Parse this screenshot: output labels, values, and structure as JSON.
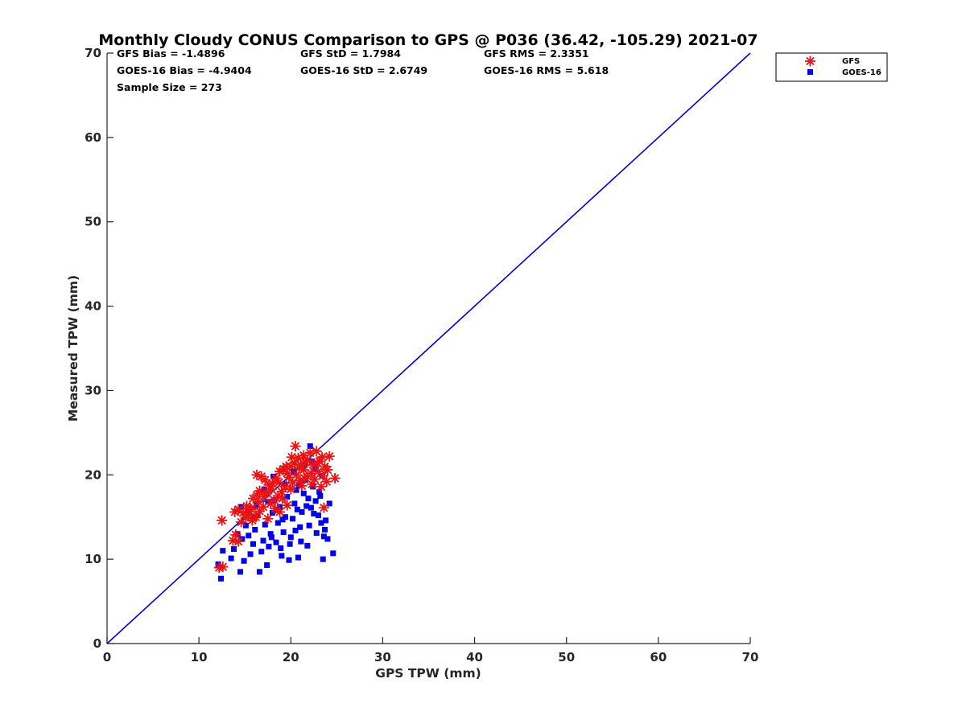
{
  "chart_data": {
    "type": "scatter",
    "title": "Monthly Cloudy CONUS Comparison to GPS @ P036 (36.42, -105.29) 2021-07",
    "xlabel": "GPS TPW (mm)",
    "ylabel": "Measured TPW (mm)",
    "xlim": [
      0,
      70
    ],
    "ylim": [
      0,
      70
    ],
    "xticks": [
      "0",
      "10",
      "20",
      "30",
      "40",
      "50",
      "60",
      "70"
    ],
    "yticks": [
      "0",
      "10",
      "20",
      "30",
      "40",
      "50",
      "60",
      "70"
    ],
    "grid": false,
    "legend_position": "top-right",
    "stats": {
      "gfs_bias": "GFS Bias = -1.4896",
      "gfs_std": "GFS StD = 1.7984",
      "gfs_rms": "GFS RMS = 2.3351",
      "goes_bias": "GOES-16 Bias = -4.9404",
      "goes_std": "GOES-16 StD = 2.6749",
      "goes_rms": "GOES-16 RMS = 5.618",
      "sample_size": "Sample Size = 273"
    },
    "reference_line": {
      "x": [
        0,
        70
      ],
      "y": [
        0,
        70
      ],
      "color": "#0000dd"
    },
    "series": [
      {
        "name": "GFS",
        "marker": "asterisk",
        "color": "#ee1111",
        "points": [
          [
            12.2,
            9.0
          ],
          [
            12.6,
            9.1
          ],
          [
            12.5,
            14.6
          ],
          [
            13.7,
            12.2
          ],
          [
            14.0,
            12.9
          ],
          [
            14.3,
            12.1
          ],
          [
            13.9,
            15.6
          ],
          [
            14.3,
            15.9
          ],
          [
            14.8,
            15.5
          ],
          [
            15.2,
            16.3
          ],
          [
            15.6,
            16.0
          ],
          [
            15.9,
            17.2
          ],
          [
            16.3,
            17.6
          ],
          [
            16.6,
            18.1
          ],
          [
            16.3,
            20.0
          ],
          [
            16.8,
            19.8
          ],
          [
            17.2,
            19.4
          ],
          [
            17.6,
            18.8
          ],
          [
            18.0,
            19.0
          ],
          [
            18.4,
            19.6
          ],
          [
            18.8,
            20.4
          ],
          [
            19.2,
            20.7
          ],
          [
            19.6,
            20.2
          ],
          [
            20.0,
            21.0
          ],
          [
            20.4,
            21.4
          ],
          [
            20.5,
            23.4
          ],
          [
            20.8,
            22.0
          ],
          [
            21.1,
            21.2
          ],
          [
            21.4,
            22.3
          ],
          [
            21.8,
            21.7
          ],
          [
            22.1,
            22.6
          ],
          [
            22.4,
            21.2
          ],
          [
            22.8,
            22.8
          ],
          [
            23.1,
            21.6
          ],
          [
            23.4,
            22.1
          ],
          [
            23.7,
            21.0
          ],
          [
            24.2,
            22.2
          ],
          [
            24.0,
            20.6
          ],
          [
            23.5,
            19.9
          ],
          [
            23.0,
            20.4
          ],
          [
            22.6,
            19.5
          ],
          [
            22.2,
            20.2
          ],
          [
            21.8,
            19.8
          ],
          [
            21.4,
            20.6
          ],
          [
            21.0,
            19.3
          ],
          [
            20.6,
            20.0
          ],
          [
            20.2,
            19.1
          ],
          [
            19.8,
            19.7
          ],
          [
            19.4,
            18.6
          ],
          [
            19.0,
            18.0
          ],
          [
            18.6,
            17.5
          ],
          [
            18.2,
            17.0
          ],
          [
            17.8,
            16.6
          ],
          [
            17.4,
            17.9
          ],
          [
            17.0,
            16.2
          ],
          [
            16.6,
            15.7
          ],
          [
            16.2,
            15.0
          ],
          [
            15.8,
            14.6
          ],
          [
            15.4,
            15.3
          ],
          [
            17.5,
            14.8
          ],
          [
            18.3,
            16.0
          ],
          [
            19.1,
            17.2
          ],
          [
            20.0,
            18.3
          ],
          [
            21.2,
            18.7
          ],
          [
            22.3,
            18.9
          ],
          [
            23.3,
            18.6
          ],
          [
            23.6,
            16.1
          ],
          [
            24.8,
            19.6
          ],
          [
            23.9,
            19.2
          ],
          [
            22.9,
            21.4
          ],
          [
            21.6,
            21.5
          ],
          [
            20.9,
            20.8
          ],
          [
            20.1,
            22.1
          ],
          [
            19.5,
            21.0
          ],
          [
            18.7,
            19.1
          ],
          [
            17.9,
            18.3
          ],
          [
            17.1,
            17.4
          ],
          [
            16.5,
            16.8
          ],
          [
            15.7,
            15.9
          ],
          [
            15.1,
            14.9
          ],
          [
            14.6,
            14.4
          ],
          [
            18.8,
            15.6
          ],
          [
            19.6,
            16.4
          ],
          [
            21.5,
            19.6
          ]
        ]
      },
      {
        "name": "GOES-16",
        "marker": "square",
        "color": "#0000ee",
        "points": [
          [
            12.1,
            9.4
          ],
          [
            12.4,
            7.7
          ],
          [
            12.6,
            11.0
          ],
          [
            13.5,
            10.1
          ],
          [
            13.8,
            11.2
          ],
          [
            14.2,
            13.0
          ],
          [
            14.5,
            8.5
          ],
          [
            14.9,
            9.8
          ],
          [
            14.7,
            12.4
          ],
          [
            15.1,
            14.0
          ],
          [
            15.4,
            12.8
          ],
          [
            15.6,
            10.6
          ],
          [
            15.9,
            11.8
          ],
          [
            16.1,
            13.5
          ],
          [
            16.4,
            15.2
          ],
          [
            16.6,
            8.5
          ],
          [
            16.8,
            10.9
          ],
          [
            17.0,
            12.2
          ],
          [
            17.2,
            14.1
          ],
          [
            17.4,
            9.3
          ],
          [
            17.6,
            11.5
          ],
          [
            17.8,
            13.0
          ],
          [
            18.0,
            15.5
          ],
          [
            18.2,
            17.0
          ],
          [
            18.4,
            12.0
          ],
          [
            18.6,
            14.3
          ],
          [
            18.8,
            16.2
          ],
          [
            19.0,
            10.4
          ],
          [
            19.2,
            13.2
          ],
          [
            19.4,
            15.0
          ],
          [
            19.6,
            17.4
          ],
          [
            19.8,
            9.9
          ],
          [
            20.0,
            12.6
          ],
          [
            20.2,
            14.8
          ],
          [
            20.4,
            16.6
          ],
          [
            20.6,
            18.2
          ],
          [
            20.8,
            10.2
          ],
          [
            21.0,
            13.8
          ],
          [
            21.2,
            15.6
          ],
          [
            21.4,
            17.8
          ],
          [
            21.6,
            19.4
          ],
          [
            21.8,
            11.6
          ],
          [
            22.0,
            14.0
          ],
          [
            22.2,
            16.1
          ],
          [
            22.1,
            23.4
          ],
          [
            22.4,
            18.6
          ],
          [
            22.6,
            20.8
          ],
          [
            22.8,
            13.1
          ],
          [
            23.0,
            15.2
          ],
          [
            23.2,
            17.5
          ],
          [
            23.4,
            19.9
          ],
          [
            23.5,
            10.0
          ],
          [
            23.6,
            12.7
          ],
          [
            23.8,
            14.6
          ],
          [
            24.0,
            12.4
          ],
          [
            24.2,
            16.6
          ],
          [
            24.6,
            10.7
          ],
          [
            16.3,
            16.4
          ],
          [
            17.1,
            18.3
          ],
          [
            18.1,
            19.8
          ],
          [
            19.3,
            18.9
          ],
          [
            20.3,
            20.4
          ],
          [
            21.5,
            21.1
          ],
          [
            22.3,
            21.6
          ],
          [
            23.1,
            18.0
          ],
          [
            16.0,
            15.0
          ],
          [
            17.5,
            16.8
          ],
          [
            18.9,
            11.3
          ],
          [
            19.9,
            11.8
          ],
          [
            20.7,
            15.9
          ],
          [
            21.9,
            17.2
          ],
          [
            22.7,
            16.9
          ],
          [
            23.3,
            14.3
          ],
          [
            14.6,
            16.2
          ],
          [
            15.3,
            15.8
          ],
          [
            17.9,
            12.6
          ],
          [
            19.1,
            14.7
          ],
          [
            20.5,
            13.4
          ],
          [
            21.1,
            12.1
          ],
          [
            22.5,
            15.4
          ],
          [
            23.7,
            13.5
          ],
          [
            18.5,
            15.8
          ],
          [
            20.9,
            18.8
          ],
          [
            21.7,
            16.3
          ]
        ]
      }
    ]
  }
}
